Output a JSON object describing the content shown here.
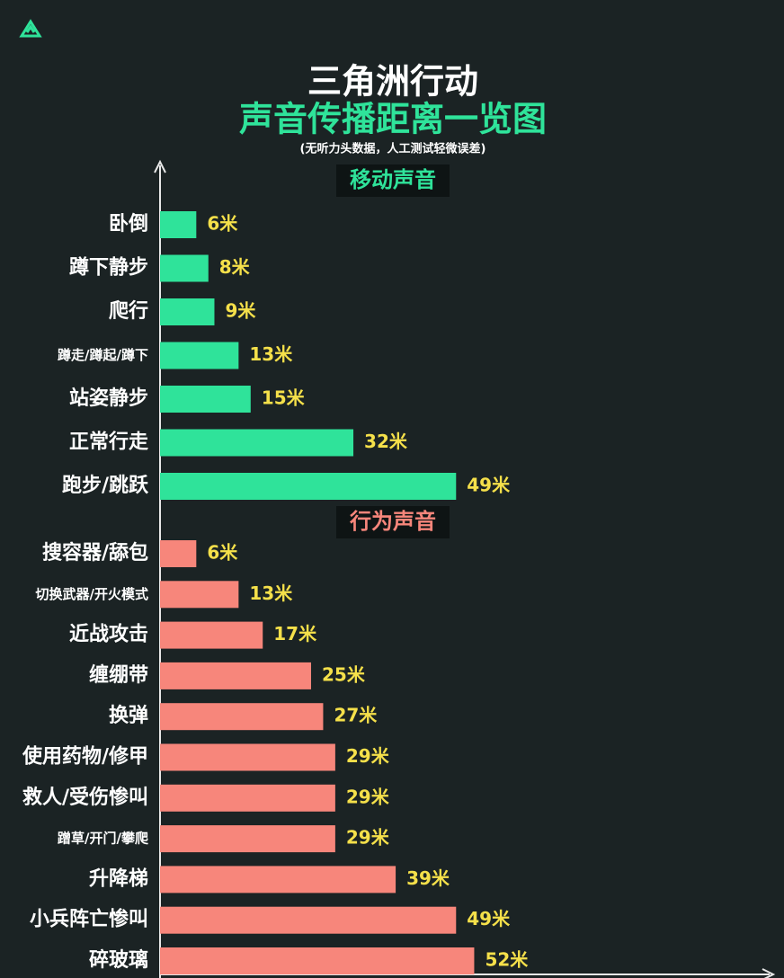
{
  "chart_data": {
    "type": "bar",
    "orientation": "horizontal",
    "title": "三角洲行动",
    "subtitle": "声音传播距离一览图",
    "note": "(无听力头数据，人工测试轻微误差)",
    "xlim": [
      0,
      100
    ],
    "groups": [
      {
        "name": "移动声音",
        "color": "#2fe39a",
        "categories": [
          "卧倒",
          "蹲下静步",
          "爬行",
          "蹲走/蹲起/蹲下",
          "站姿静步",
          "正常行走",
          "跑步/跳跃"
        ],
        "values": [
          6,
          8,
          9,
          13,
          15,
          32,
          49
        ],
        "value_labels": [
          "6米",
          "8米",
          "9米",
          "13米",
          "15米",
          "32米",
          "49米"
        ]
      },
      {
        "name": "行为声音",
        "color": "#f7867b",
        "categories": [
          "搜容器/舔包",
          "切换武器/开火模式",
          "近战攻击",
          "缠绷带",
          "换弹",
          "使用药物/修甲",
          "救人/受伤惨叫",
          "蹭草/开门/攀爬",
          "升降梯",
          "小兵阵亡惨叫",
          "碎玻璃"
        ],
        "values": [
          6,
          13,
          17,
          25,
          27,
          29,
          29,
          29,
          39,
          49,
          52
        ],
        "value_labels": [
          "6米",
          "13米",
          "17米",
          "25米",
          "27米",
          "29米",
          "29米",
          "29米",
          "39米",
          "49米",
          "52米"
        ]
      }
    ]
  }
}
